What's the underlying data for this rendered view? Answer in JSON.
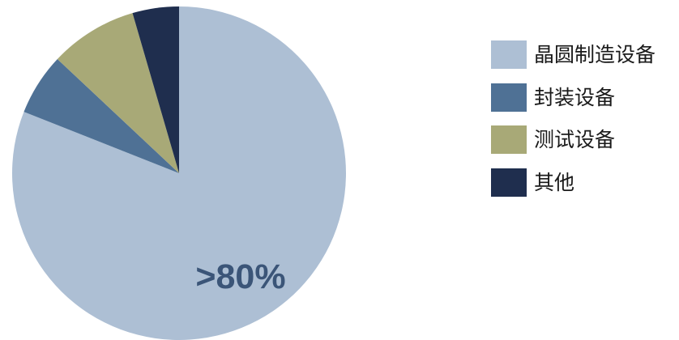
{
  "chart_data": {
    "type": "pie",
    "title": "",
    "categories": [
      "晶圆制造设备",
      "封装设备",
      "测试设备",
      "其他"
    ],
    "values": [
      81,
      6,
      8.5,
      4.5
    ],
    "colors": [
      "#adbfd4",
      "#4f7195",
      "#a8a977",
      "#1f2e4e"
    ],
    "start_angle_deg": 0,
    "direction": "clockwise",
    "legend_position": "right",
    "annotations": [
      {
        "text": ">80%",
        "color": "#3b5578",
        "series_index": 0
      }
    ]
  }
}
